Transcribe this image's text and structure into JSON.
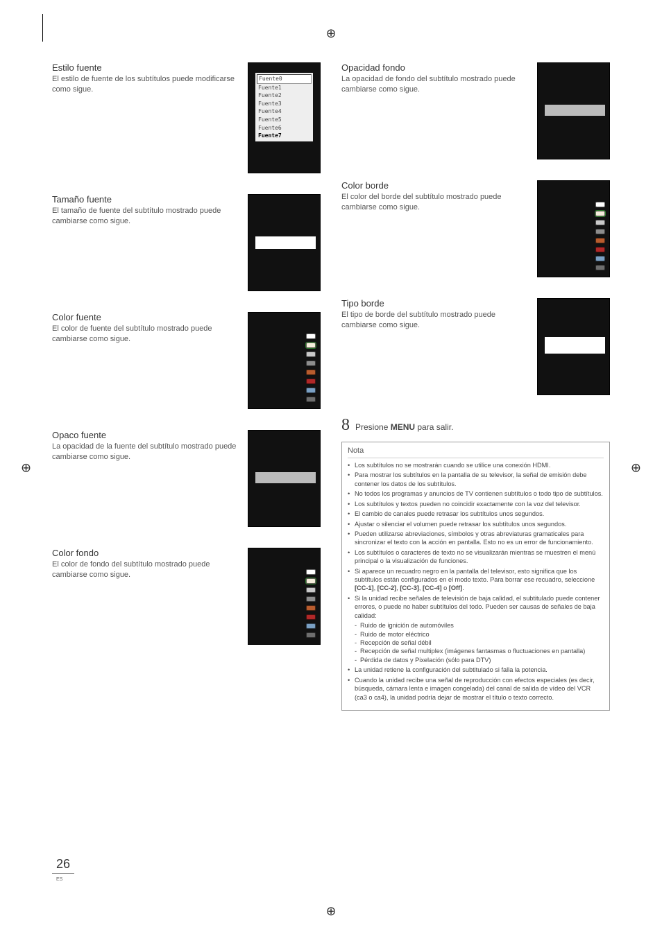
{
  "page": {
    "number": "26",
    "lang_code": "ES"
  },
  "left_sections": [
    {
      "title": "Estilo fuente",
      "body": "El estilo de fuente de los subtítulos puede modificarse como sigue.",
      "thumb": "fontlist",
      "thumb_height": 160
    },
    {
      "title": "Tamaño fuente",
      "body": "El tamaño de fuente del subtítulo mostrado puede cambiarse como sigue.",
      "thumb": "size",
      "thumb_height": 140
    },
    {
      "title": "Color fuente",
      "body": "El color de fuente del subtítulo mostrado puede cambiarse como sigue.",
      "thumb": "colors",
      "thumb_height": 140
    },
    {
      "title": "Opaco fuente",
      "body": "La opacidad de la fuente del subtítulo mostrado puede cambiarse como sigue.",
      "thumb": "opacity",
      "thumb_height": 140
    },
    {
      "title": "Color fondo",
      "body": "El color de fondo del subtítulo mostrado puede cambiarse como sigue.",
      "thumb": "colors",
      "thumb_height": 140
    }
  ],
  "right_sections": [
    {
      "title": "Opacidad fondo",
      "body": "La opacidad de fondo del subtítulo mostrado puede cambiarse como sigue.",
      "thumb": "opacity",
      "thumb_height": 140
    },
    {
      "title": "Color borde",
      "body": "El color del borde del subtítulo mostrado puede cambiarse como sigue.",
      "thumb": "colors",
      "thumb_height": 140
    },
    {
      "title": "Tipo borde",
      "body": "El tipo de borde del subtítulo mostrado puede cambiarse como sigue.",
      "thumb": "border",
      "thumb_height": 140
    }
  ],
  "font_options": [
    "Fuente0",
    "Fuente1",
    "Fuente2",
    "Fuente3",
    "Fuente4",
    "Fuente5",
    "Fuente6",
    "Fuente7"
  ],
  "color_swatches": [
    "#ffffff",
    "#f5eedc",
    "#c9c9c9",
    "#8d8d8d",
    "#b85c2e",
    "#b02828",
    "#7aa0c4",
    "#6e6e6e"
  ],
  "step": {
    "num": "8",
    "prefix": "Presione ",
    "bold": "MENU",
    "suffix": " para salir."
  },
  "nota": {
    "heading": "Nota",
    "items": [
      {
        "text": "Los subtítulos no se mostrarán cuando se utilice una conexión HDMI."
      },
      {
        "text": "Para mostrar los subtítulos en la pantalla de su televisor, la señal de emisión debe contener los datos de los subtítulos."
      },
      {
        "text": "No todos los programas y anuncios de TV contienen subtítulos o todo tipo de subtítulos."
      },
      {
        "text": "Los subtítulos y textos pueden no coincidir exactamente con la voz del televisor."
      },
      {
        "text": "El cambio de canales puede retrasar los subtítulos unos segundos."
      },
      {
        "text": "Ajustar o silenciar el volumen puede retrasar los subtítulos unos segundos."
      },
      {
        "text": "Pueden utilizarse abreviaciones, símbolos y otras abreviaturas gramaticales para sincronizar el texto con la acción en pantalla. Esto no es un error de funcionamiento."
      },
      {
        "text": "Los subtítulos o caracteres de texto no se visualizarán mientras se muestren el menú principal o la visualización de funciones."
      },
      {
        "text": "Si aparece un recuadro negro en la pantalla del televisor, esto significa que los subtítulos están configurados en el modo texto. Para borrar ese recuadro, seleccione [CC-1], [CC-2], [CC-3], [CC-4] o [Off]."
      },
      {
        "text": "Si la unidad recibe señales de televisión de baja calidad, el subtitulado puede contener errores, o puede no haber subtítulos del todo. Pueden ser causas de señales de baja calidad:",
        "sub": [
          "Ruido de ignición de automóviles",
          "Ruido de motor eléctrico",
          "Recepción de señal débil",
          "Recepción de señal multiplex (imágenes fantasmas o fluctuaciones en pantalla)",
          "Pérdida de datos y Pixelación (sólo para DTV)"
        ]
      },
      {
        "text": "La unidad retiene la configuración del subtitulado si falla la potencia."
      },
      {
        "text": "Cuando la unidad recibe una señal de reproducción con efectos especiales (es decir, búsqueda, cámara lenta e imagen congelada) del canal de salida de vídeo del VCR (ca3 o ca4), la unidad podría dejar de mostrar el título o texto correcto."
      }
    ]
  }
}
